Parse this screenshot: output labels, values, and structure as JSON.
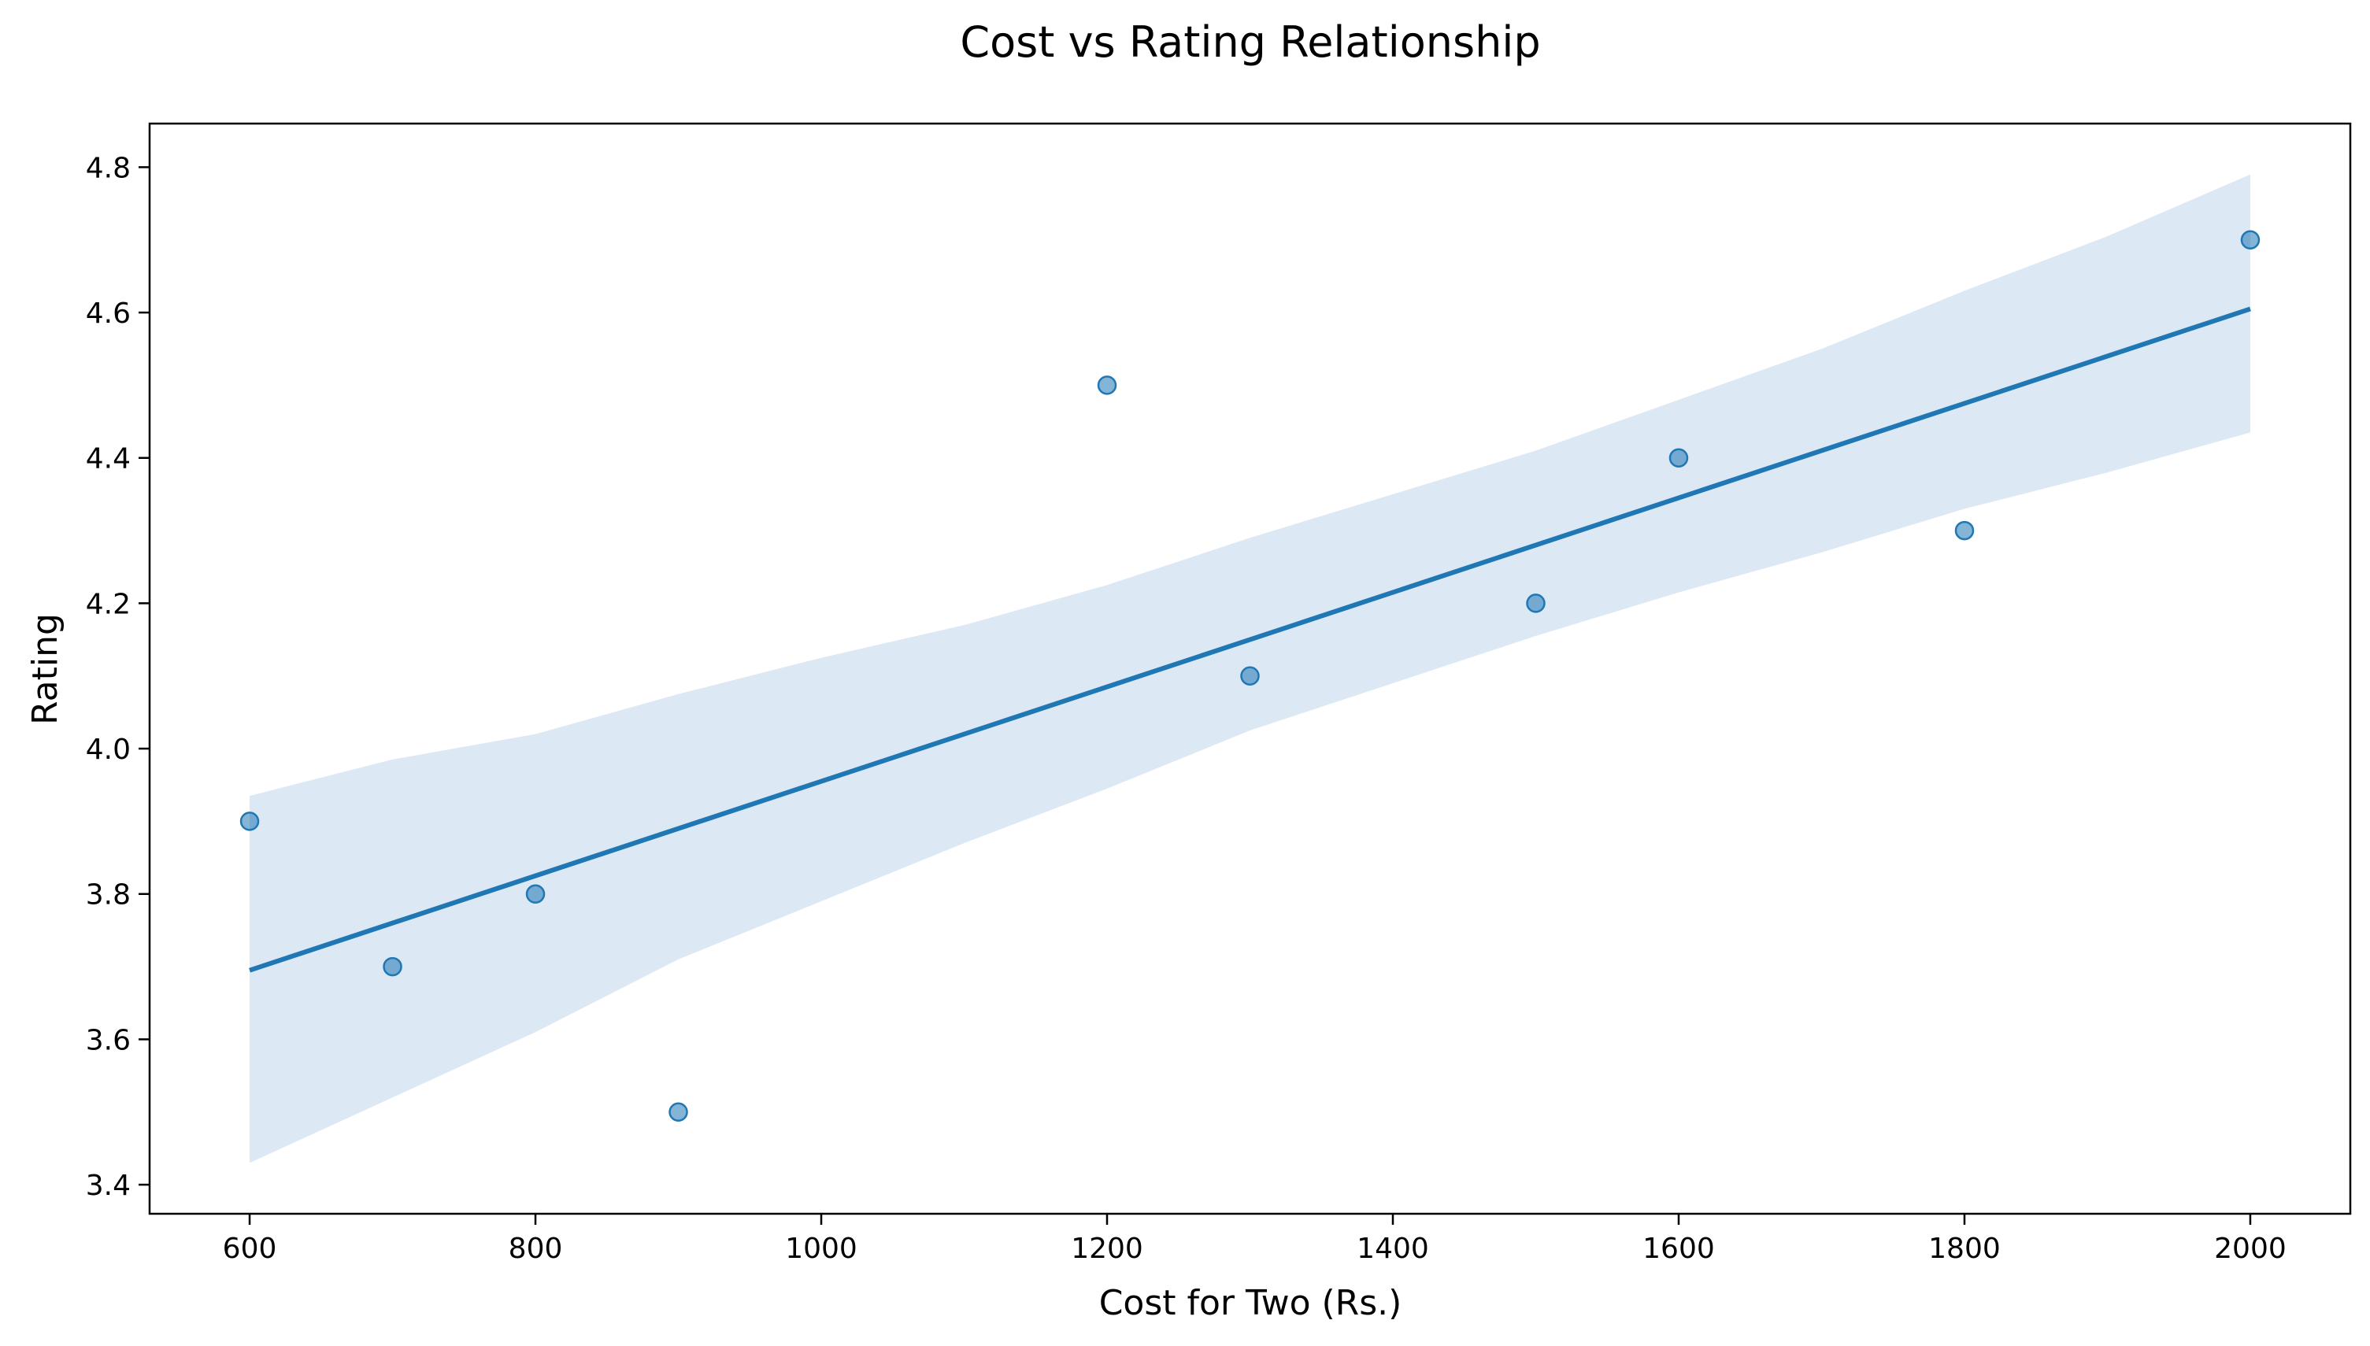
{
  "chart_data": {
    "type": "scatter",
    "title": "Cost vs Rating Relationship",
    "xlabel": "Cost for Two (Rs.)",
    "ylabel": "Rating",
    "xlim": [
      530,
      2070
    ],
    "ylim": [
      3.36,
      4.86
    ],
    "xticks": [
      600,
      800,
      1000,
      1200,
      1400,
      1600,
      1800,
      2000
    ],
    "yticks": [
      3.4,
      3.6,
      3.8,
      4.0,
      4.2,
      4.4,
      4.6,
      4.8
    ],
    "ytick_labels": [
      "3.4",
      "3.6",
      "3.8",
      "4.0",
      "4.2",
      "4.4",
      "4.6",
      "4.8"
    ],
    "points": [
      {
        "x": 600,
        "y": 3.9
      },
      {
        "x": 700,
        "y": 3.7
      },
      {
        "x": 800,
        "y": 3.8
      },
      {
        "x": 900,
        "y": 3.5
      },
      {
        "x": 1200,
        "y": 4.5
      },
      {
        "x": 1300,
        "y": 4.1
      },
      {
        "x": 1500,
        "y": 4.2
      },
      {
        "x": 1600,
        "y": 4.4
      },
      {
        "x": 1800,
        "y": 4.3
      },
      {
        "x": 2000,
        "y": 4.7
      }
    ],
    "regression_line": [
      {
        "x": 600,
        "y": 3.695
      },
      {
        "x": 2000,
        "y": 4.605
      }
    ],
    "confidence_band": [
      {
        "x": 600,
        "lower": 3.43,
        "upper": 3.935
      },
      {
        "x": 700,
        "lower": 3.52,
        "upper": 3.985
      },
      {
        "x": 800,
        "lower": 3.61,
        "upper": 4.02
      },
      {
        "x": 900,
        "lower": 3.71,
        "upper": 4.075
      },
      {
        "x": 1000,
        "lower": 3.79,
        "upper": 4.125
      },
      {
        "x": 1100,
        "lower": 3.87,
        "upper": 4.17
      },
      {
        "x": 1200,
        "lower": 3.945,
        "upper": 4.225
      },
      {
        "x": 1300,
        "lower": 4.025,
        "upper": 4.29
      },
      {
        "x": 1400,
        "lower": 4.09,
        "upper": 4.35
      },
      {
        "x": 1500,
        "lower": 4.155,
        "upper": 4.41
      },
      {
        "x": 1600,
        "lower": 4.215,
        "upper": 4.48
      },
      {
        "x": 1700,
        "lower": 4.27,
        "upper": 4.55
      },
      {
        "x": 1800,
        "lower": 4.33,
        "upper": 4.63
      },
      {
        "x": 1900,
        "lower": 4.38,
        "upper": 4.705
      },
      {
        "x": 2000,
        "lower": 4.435,
        "upper": 4.79
      }
    ],
    "grid": false,
    "colors": {
      "point": "#1f77b4",
      "line": "#1f77b4",
      "band": "#dce8f4"
    }
  }
}
